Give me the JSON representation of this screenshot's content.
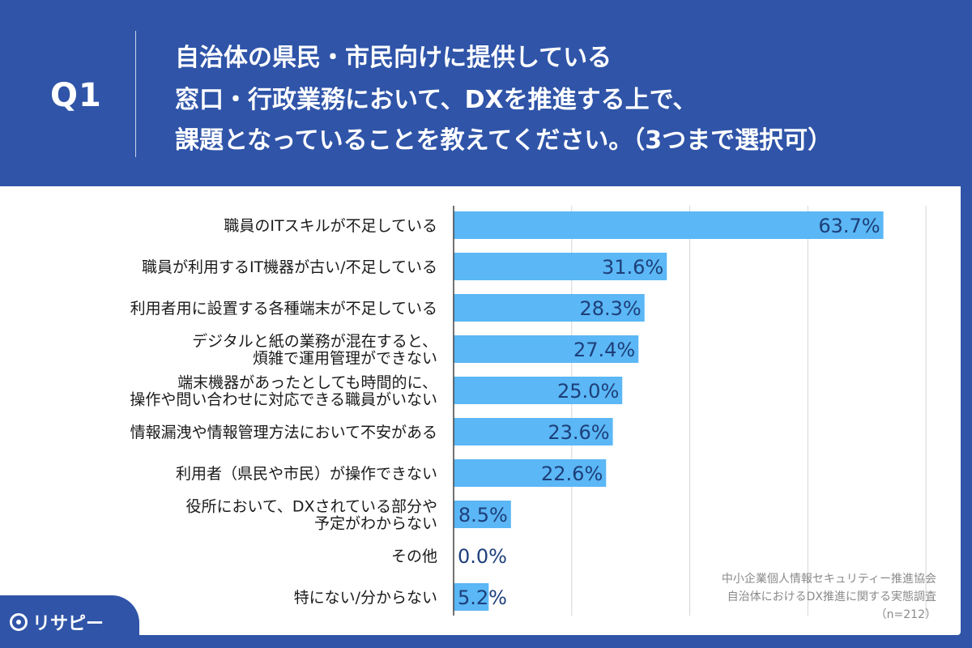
{
  "header": {
    "question": "Q1",
    "title_lines": [
      "自治体の県民・市民向けに提供している",
      "窓口・行政業務において、DXを推進する上で、",
      "課題となっていることを教えてください。（3つまで選択可）"
    ]
  },
  "source": {
    "lines": [
      "中小企業個人情報セキュリティー推進協会",
      "自治体におけるDX推進に関する実態調査",
      "（n=212）"
    ]
  },
  "brand": {
    "name": "リサピー"
  },
  "colors": {
    "background": "#2f54a8",
    "bar": "#5bb7f5",
    "value_text": "#1d3f7a"
  },
  "chart_data": {
    "type": "bar",
    "orientation": "horizontal",
    "categories": [
      [
        "職員のITスキルが不足している"
      ],
      [
        "職員が利用するIT機器が古い/不足している"
      ],
      [
        "利用者用に設置する各種端末が不足している"
      ],
      [
        "デジタルと紙の業務が混在すると、",
        "煩雑で運用管理ができない"
      ],
      [
        "端末機器があったとしても時間的に、",
        "操作や問い合わせに対応できる職員がいない"
      ],
      [
        "情報漏洩や情報管理方法において不安がある"
      ],
      [
        "利用者（県民や市民）が操作できない"
      ],
      [
        "役所において、DXされている部分や",
        "予定がわからない"
      ],
      [
        "その他"
      ],
      [
        "特にない/分からない"
      ]
    ],
    "values": [
      63.7,
      31.6,
      28.3,
      27.4,
      25.0,
      23.6,
      22.6,
      8.5,
      0.0,
      5.2
    ],
    "value_labels": [
      "63.7%",
      "31.6%",
      "28.3%",
      "27.4%",
      "25.0%",
      "23.6%",
      "22.6%",
      "8.5%",
      "0.0%",
      "5.2%"
    ],
    "xlim": [
      0,
      70
    ],
    "grid": true,
    "legend": "none"
  }
}
